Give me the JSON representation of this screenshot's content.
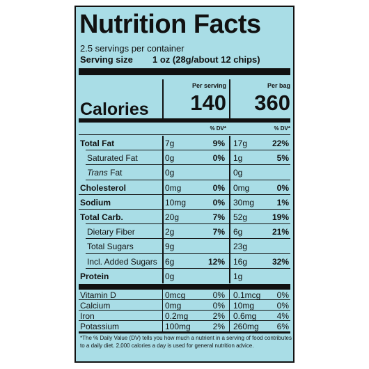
{
  "title": "Nutrition Facts",
  "servings_per_container": "2.5 servings per container",
  "serving_size_label": "Serving size",
  "serving_size_value": "1 oz (28g/about 12 chips)",
  "columns": {
    "per_serving": "Per serving",
    "per_bag": "Per bag",
    "dv_header": "% DV*"
  },
  "calories": {
    "label": "Calories",
    "per_serving": "140",
    "per_bag": "360"
  },
  "nutrients": [
    {
      "name": "Total Fat",
      "bold": true,
      "indent": false,
      "italic_prefix": "",
      "s_amt": "7g",
      "s_dv": "9%",
      "b_amt": "17g",
      "b_dv": "22%",
      "dv_bold": true
    },
    {
      "name": "Saturated Fat",
      "bold": false,
      "indent": true,
      "italic_prefix": "",
      "s_amt": "0g",
      "s_dv": "0%",
      "b_amt": "1g",
      "b_dv": "5%",
      "dv_bold": true
    },
    {
      "name": " Fat",
      "bold": false,
      "indent": true,
      "italic_prefix": "Trans",
      "s_amt": "0g",
      "s_dv": "",
      "b_amt": "0g",
      "b_dv": "",
      "dv_bold": true
    },
    {
      "name": "Cholesterol",
      "bold": true,
      "indent": false,
      "italic_prefix": "",
      "s_amt": "0mg",
      "s_dv": "0%",
      "b_amt": "0mg",
      "b_dv": "0%",
      "dv_bold": true
    },
    {
      "name": "Sodium",
      "bold": true,
      "indent": false,
      "italic_prefix": "",
      "s_amt": "10mg",
      "s_dv": "0%",
      "b_amt": "30mg",
      "b_dv": "1%",
      "dv_bold": true
    },
    {
      "name": "Total Carb.",
      "bold": true,
      "indent": false,
      "italic_prefix": "",
      "s_amt": "20g",
      "s_dv": "7%",
      "b_amt": "52g",
      "b_dv": "19%",
      "dv_bold": true
    },
    {
      "name": "Dietary Fiber",
      "bold": false,
      "indent": true,
      "italic_prefix": "",
      "s_amt": "2g",
      "s_dv": "7%",
      "b_amt": "6g",
      "b_dv": "21%",
      "dv_bold": true
    },
    {
      "name": "Total Sugars",
      "bold": false,
      "indent": true,
      "italic_prefix": "",
      "s_amt": "9g",
      "s_dv": "",
      "b_amt": "23g",
      "b_dv": "",
      "dv_bold": true
    },
    {
      "name": "Incl. Added Sugars",
      "bold": false,
      "indent": true,
      "italic_prefix": "",
      "s_amt": "6g",
      "s_dv": "12%",
      "b_amt": "16g",
      "b_dv": "32%",
      "dv_bold": true
    },
    {
      "name": "Protein",
      "bold": true,
      "indent": false,
      "italic_prefix": "",
      "s_amt": "0g",
      "s_dv": "",
      "b_amt": "1g",
      "b_dv": "",
      "dv_bold": true
    }
  ],
  "vitamins": [
    {
      "name": "Vitamin D",
      "s_amt": "0mcg",
      "s_dv": "0%",
      "b_amt": "0.1mcg",
      "b_dv": "0%"
    },
    {
      "name": "Calcium",
      "s_amt": "0mg",
      "s_dv": "0%",
      "b_amt": "10mg",
      "b_dv": "0%"
    },
    {
      "name": "Iron",
      "s_amt": "0.2mg",
      "s_dv": "2%",
      "b_amt": "0.6mg",
      "b_dv": "4%"
    },
    {
      "name": "Potassium",
      "s_amt": "100mg",
      "s_dv": "2%",
      "b_amt": "260mg",
      "b_dv": "6%"
    }
  ],
  "footnote": "*The % Daily Value (DV) tells you how much a nutrient in a serving of food contributes to a daily diet. 2,000 calories a day is used for general nutrition advice.",
  "colors": {
    "panel_bg": "#a9dde6",
    "ink": "#111111"
  }
}
